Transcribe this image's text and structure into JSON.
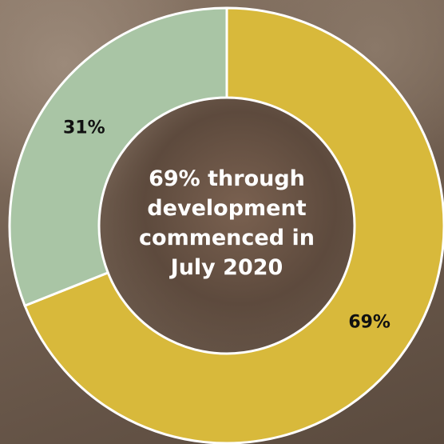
{
  "chart_data": {
    "type": "donut",
    "values": [
      69,
      31
    ],
    "value_labels": [
      "69%",
      "31%"
    ],
    "colors": [
      "#d8b93b",
      "#a9c5a5"
    ],
    "center_text": "69% through development commenced in July 2020"
  }
}
